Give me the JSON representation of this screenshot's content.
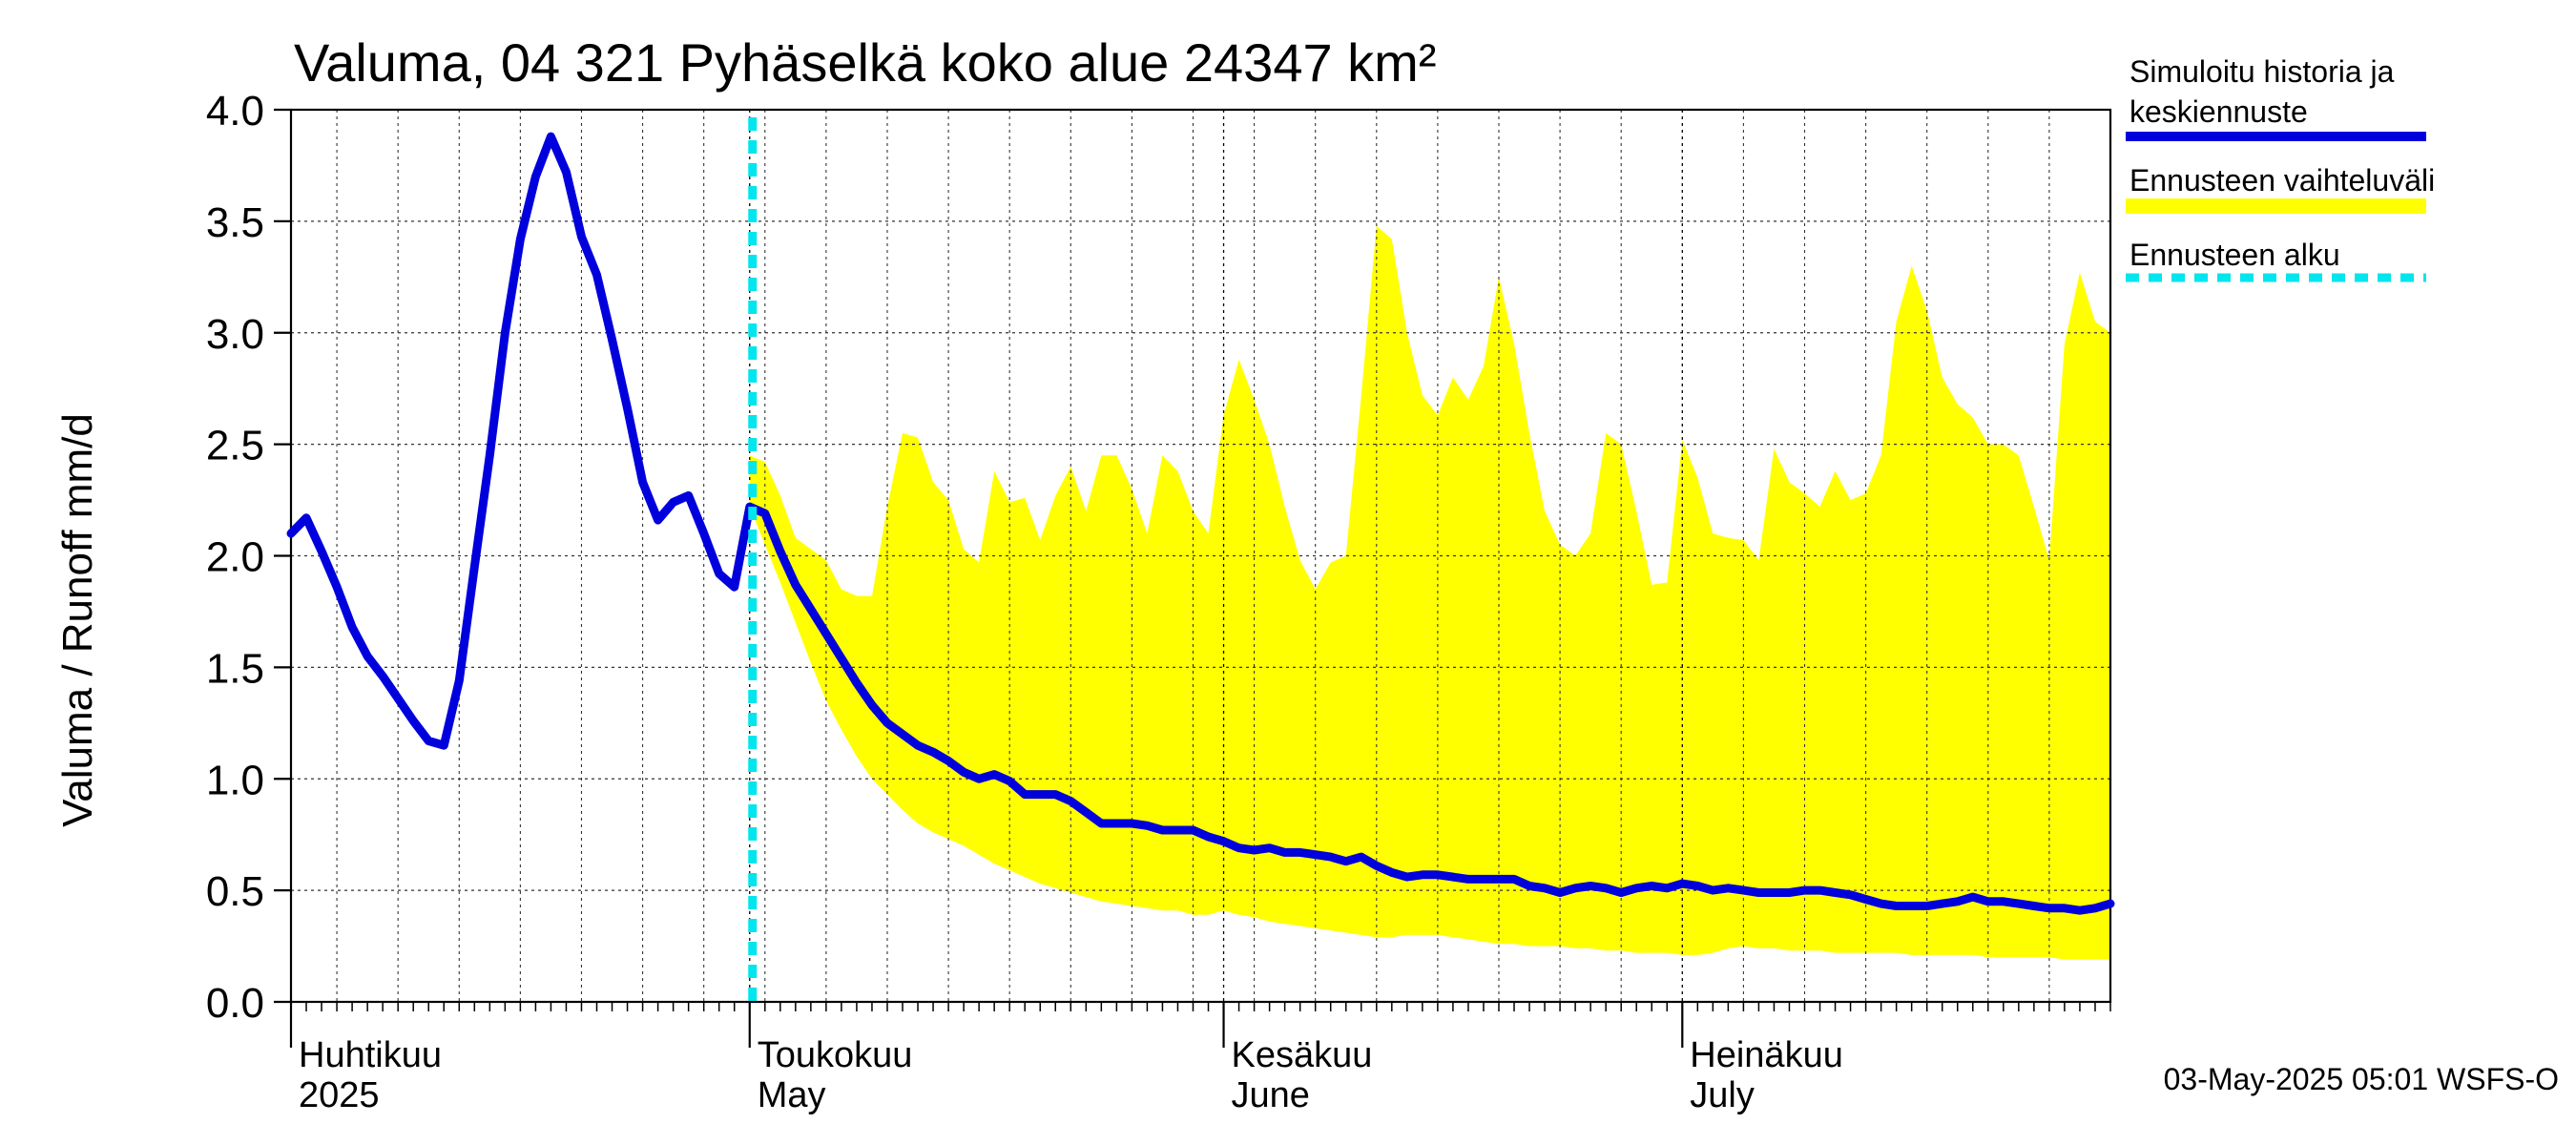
{
  "chart_data": {
    "type": "line",
    "title": "Valuma, 04 321 Pyhäselkä koko alue 24347 km²",
    "ylabel": "Valuma / Runoff    mm/d",
    "ylim": [
      0,
      4
    ],
    "yticks": [
      "0.0",
      "0.5",
      "1.0",
      "1.5",
      "2.0",
      "2.5",
      "3.0",
      "3.5",
      "4.0"
    ],
    "x_start_day": 1,
    "x_end_day": 120,
    "x_axis_note": "day 1 = 2025-04-01 (Huhtikuu), day 31 = 2025-05-01",
    "month_labels": [
      {
        "day": 1,
        "line1": "Huhtikuu",
        "line2": "2025"
      },
      {
        "day": 31,
        "line1": "Toukokuu",
        "line2": "May"
      },
      {
        "day": 62,
        "line1": "Kesäkuu",
        "line2": "June"
      },
      {
        "day": 92,
        "line1": "Heinäkuu",
        "line2": "July"
      }
    ],
    "forecast_start_day": 31,
    "series": [
      {
        "name": "Simuloitu historia ja keskiennuste",
        "color": "#0000dd",
        "x": [
          1,
          2,
          3,
          4,
          5,
          6,
          7,
          8,
          9,
          10,
          11,
          12,
          13,
          14,
          15,
          16,
          17,
          18,
          19,
          20,
          21,
          22,
          23,
          24,
          25,
          26,
          27,
          28,
          29,
          30,
          31,
          32,
          33,
          34,
          35,
          36,
          37,
          38,
          39,
          40,
          41,
          42,
          43,
          44,
          45,
          46,
          47,
          48,
          49,
          50,
          51,
          52,
          53,
          54,
          55,
          56,
          57,
          58,
          59,
          60,
          61,
          62,
          63,
          64,
          65,
          66,
          67,
          68,
          69,
          70,
          71,
          72,
          73,
          74,
          75,
          76,
          77,
          78,
          79,
          80,
          81,
          82,
          83,
          84,
          85,
          86,
          87,
          88,
          89,
          90,
          91,
          92,
          93,
          94,
          95,
          96,
          97,
          98,
          99,
          100,
          101,
          102,
          103,
          104,
          105,
          106,
          107,
          108,
          109,
          110,
          111,
          112,
          113,
          114,
          115,
          116,
          117,
          118,
          119,
          120
        ],
        "values": [
          2.1,
          2.17,
          2.02,
          1.86,
          1.68,
          1.55,
          1.46,
          1.36,
          1.26,
          1.17,
          1.15,
          1.44,
          1.95,
          2.45,
          3.0,
          3.42,
          3.7,
          3.88,
          3.72,
          3.43,
          3.26,
          2.97,
          2.66,
          2.33,
          2.16,
          2.24,
          2.27,
          2.1,
          1.92,
          1.86,
          2.22,
          2.19,
          2.02,
          1.87,
          1.76,
          1.65,
          1.54,
          1.43,
          1.33,
          1.25,
          1.2,
          1.15,
          1.12,
          1.08,
          1.03,
          1.0,
          1.02,
          0.99,
          0.93,
          0.93,
          0.93,
          0.9,
          0.85,
          0.8,
          0.8,
          0.8,
          0.79,
          0.77,
          0.77,
          0.77,
          0.74,
          0.72,
          0.69,
          0.68,
          0.69,
          0.67,
          0.67,
          0.66,
          0.65,
          0.63,
          0.65,
          0.61,
          0.58,
          0.56,
          0.57,
          0.57,
          0.56,
          0.55,
          0.55,
          0.55,
          0.55,
          0.52,
          0.51,
          0.49,
          0.51,
          0.52,
          0.51,
          0.49,
          0.51,
          0.52,
          0.51,
          0.53,
          0.52,
          0.5,
          0.51,
          0.5,
          0.49,
          0.49,
          0.49,
          0.5,
          0.5,
          0.49,
          0.48,
          0.46,
          0.44,
          0.43,
          0.43,
          0.43,
          0.44,
          0.45,
          0.47,
          0.45,
          0.45,
          0.44,
          0.43,
          0.42,
          0.42,
          0.41,
          0.42,
          0.44
        ]
      }
    ],
    "band": {
      "name": "Ennusteen vaihteluväli",
      "color": "#ffff00",
      "x": [
        31,
        32,
        33,
        34,
        35,
        36,
        37,
        38,
        39,
        40,
        41,
        42,
        43,
        44,
        45,
        46,
        47,
        48,
        49,
        50,
        51,
        52,
        53,
        54,
        55,
        56,
        57,
        58,
        59,
        60,
        61,
        62,
        63,
        64,
        65,
        66,
        67,
        68,
        69,
        70,
        71,
        72,
        73,
        74,
        75,
        76,
        77,
        78,
        79,
        80,
        81,
        82,
        83,
        84,
        85,
        86,
        87,
        88,
        89,
        90,
        91,
        92,
        93,
        94,
        95,
        96,
        97,
        98,
        99,
        100,
        101,
        102,
        103,
        104,
        105,
        106,
        107,
        108,
        109,
        110,
        111,
        112,
        113,
        114,
        115,
        116,
        117,
        118,
        119,
        120
      ],
      "upper": [
        2.45,
        2.42,
        2.27,
        2.08,
        2.03,
        1.98,
        1.85,
        1.82,
        1.82,
        2.22,
        2.55,
        2.53,
        2.33,
        2.25,
        2.03,
        1.97,
        2.38,
        2.24,
        2.26,
        2.07,
        2.27,
        2.4,
        2.2,
        2.45,
        2.45,
        2.3,
        2.1,
        2.45,
        2.38,
        2.2,
        2.1,
        2.63,
        2.88,
        2.7,
        2.5,
        2.22,
        1.98,
        1.85,
        1.97,
        2.0,
        2.72,
        3.48,
        3.42,
        3.0,
        2.72,
        2.63,
        2.8,
        2.7,
        2.85,
        3.25,
        2.95,
        2.55,
        2.2,
        2.05,
        2.0,
        2.1,
        2.55,
        2.5,
        2.2,
        1.87,
        1.88,
        2.52,
        2.35,
        2.1,
        2.08,
        2.07,
        1.98,
        2.48,
        2.33,
        2.28,
        2.22,
        2.38,
        2.25,
        2.28,
        2.45,
        3.05,
        3.3,
        3.1,
        2.8,
        2.68,
        2.62,
        2.5,
        2.5,
        2.45,
        2.22,
        1.98,
        2.95,
        3.27,
        3.05,
        3.0
      ],
      "lower": [
        2.22,
        2.05,
        1.88,
        1.7,
        1.52,
        1.35,
        1.22,
        1.1,
        1.0,
        0.93,
        0.86,
        0.8,
        0.76,
        0.73,
        0.7,
        0.66,
        0.62,
        0.59,
        0.56,
        0.53,
        0.51,
        0.49,
        0.47,
        0.45,
        0.44,
        0.43,
        0.42,
        0.41,
        0.41,
        0.39,
        0.39,
        0.41,
        0.39,
        0.38,
        0.36,
        0.35,
        0.34,
        0.33,
        0.32,
        0.31,
        0.3,
        0.29,
        0.29,
        0.3,
        0.3,
        0.3,
        0.29,
        0.28,
        0.27,
        0.26,
        0.26,
        0.25,
        0.25,
        0.25,
        0.24,
        0.24,
        0.23,
        0.23,
        0.22,
        0.22,
        0.22,
        0.21,
        0.21,
        0.22,
        0.24,
        0.25,
        0.24,
        0.24,
        0.23,
        0.23,
        0.23,
        0.22,
        0.22,
        0.22,
        0.22,
        0.22,
        0.21,
        0.21,
        0.21,
        0.21,
        0.21,
        0.2,
        0.2,
        0.2,
        0.2,
        0.2,
        0.19,
        0.19,
        0.19,
        0.19
      ]
    },
    "legend": {
      "placement": "right",
      "entries": [
        {
          "line1": "Simuloitu historia ja",
          "line2": "keskiennuste",
          "style": "solid",
          "color": "#0000dd"
        },
        {
          "line1": "Ennusteen vaihteluväli",
          "line2": "",
          "style": "band",
          "color": "#ffff00"
        },
        {
          "line1": "Ennusteen alku",
          "line2": "",
          "style": "dashed",
          "color": "#00e5ee"
        }
      ]
    },
    "footer": "03-May-2025 05:01 WSFS-O"
  }
}
